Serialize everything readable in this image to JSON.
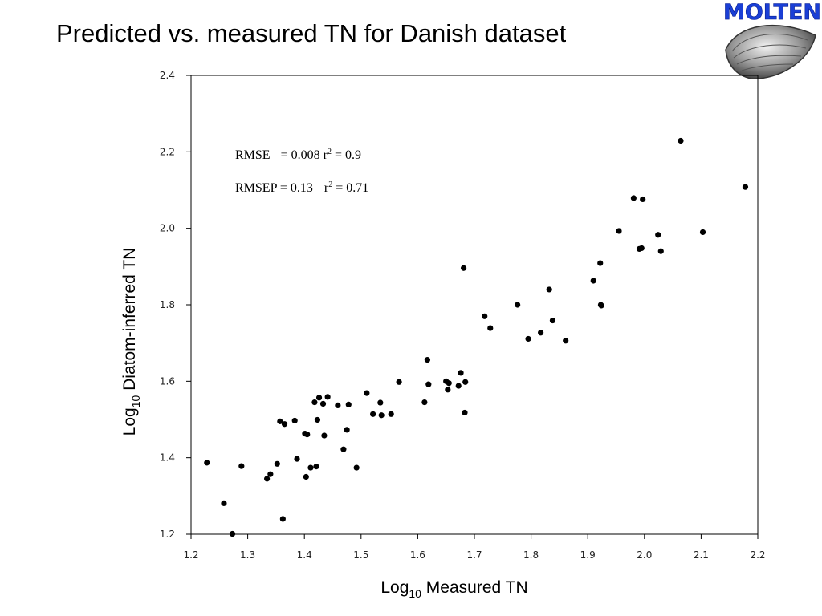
{
  "slide": {
    "title": "Predicted vs. measured TN for Danish dataset",
    "logo_text": "MOLTEN"
  },
  "chart_data": {
    "type": "scatter",
    "title": "",
    "xlabel_main": "Log",
    "xlabel_sub": "10",
    "xlabel_rest": " Measured TN",
    "ylabel_main": "Log",
    "ylabel_sub": "10",
    "ylabel_rest": " Diatom-inferred TN",
    "xlim": [
      1.2,
      2.2
    ],
    "ylim": [
      1.2,
      2.4
    ],
    "xticks": [
      "1.2",
      "1.3",
      "1.4",
      "1.5",
      "1.6",
      "1.7",
      "1.8",
      "1.9",
      "2.0",
      "2.1",
      "2.2"
    ],
    "yticks": [
      "1.2",
      "1.4",
      "1.6",
      "1.8",
      "2.0",
      "2.2",
      "2.4"
    ],
    "grid": false,
    "annotations": {
      "rmse_label": "RMSE",
      "rmse_value": "= 0.008 r",
      "rmse_exp": "2",
      "rmse_r2": " = 0.9",
      "rmsep_label": "RMSEP = 0.13",
      "rmsep_r": "r",
      "rmsep_exp": "2",
      "rmsep_r2": " = 0.71"
    },
    "points": [
      [
        1.228,
        1.387
      ],
      [
        1.258,
        1.281
      ],
      [
        1.273,
        1.201
      ],
      [
        1.289,
        1.378
      ],
      [
        1.334,
        1.345
      ],
      [
        1.34,
        1.357
      ],
      [
        1.352,
        1.384
      ],
      [
        1.357,
        1.495
      ],
      [
        1.362,
        1.24
      ],
      [
        1.365,
        1.488
      ],
      [
        1.383,
        1.497
      ],
      [
        1.387,
        1.397
      ],
      [
        1.401,
        1.463
      ],
      [
        1.403,
        1.35
      ],
      [
        1.405,
        1.461
      ],
      [
        1.411,
        1.374
      ],
      [
        1.418,
        1.545
      ],
      [
        1.421,
        1.377
      ],
      [
        1.423,
        1.499
      ],
      [
        1.426,
        1.557
      ],
      [
        1.433,
        1.541
      ],
      [
        1.435,
        1.458
      ],
      [
        1.441,
        1.559
      ],
      [
        1.459,
        1.537
      ],
      [
        1.469,
        1.422
      ],
      [
        1.475,
        1.473
      ],
      [
        1.478,
        1.539
      ],
      [
        1.492,
        1.374
      ],
      [
        1.51,
        1.569
      ],
      [
        1.521,
        1.514
      ],
      [
        1.534,
        1.544
      ],
      [
        1.536,
        1.511
      ],
      [
        1.553,
        1.514
      ],
      [
        1.567,
        1.598
      ],
      [
        1.612,
        1.545
      ],
      [
        1.617,
        1.656
      ],
      [
        1.619,
        1.592
      ],
      [
        1.65,
        1.6
      ],
      [
        1.653,
        1.578
      ],
      [
        1.655,
        1.595
      ],
      [
        1.672,
        1.588
      ],
      [
        1.676,
        1.622
      ],
      [
        1.681,
        1.896
      ],
      [
        1.683,
        1.518
      ],
      [
        1.684,
        1.598
      ],
      [
        1.718,
        1.77
      ],
      [
        1.728,
        1.739
      ],
      [
        1.776,
        1.8
      ],
      [
        1.795,
        1.711
      ],
      [
        1.817,
        1.727
      ],
      [
        1.832,
        1.84
      ],
      [
        1.838,
        1.759
      ],
      [
        1.861,
        1.706
      ],
      [
        1.91,
        1.863
      ],
      [
        1.922,
        1.909
      ],
      [
        1.923,
        1.8
      ],
      [
        1.924,
        1.798
      ],
      [
        1.955,
        1.993
      ],
      [
        1.981,
        2.079
      ],
      [
        1.991,
        1.946
      ],
      [
        1.995,
        1.948
      ],
      [
        1.997,
        2.076
      ],
      [
        2.024,
        1.983
      ],
      [
        2.029,
        1.94
      ],
      [
        2.064,
        2.229
      ],
      [
        2.103,
        1.99
      ],
      [
        2.178,
        2.108
      ]
    ]
  },
  "colors": {
    "point": "#000000",
    "axis": "#000000"
  }
}
